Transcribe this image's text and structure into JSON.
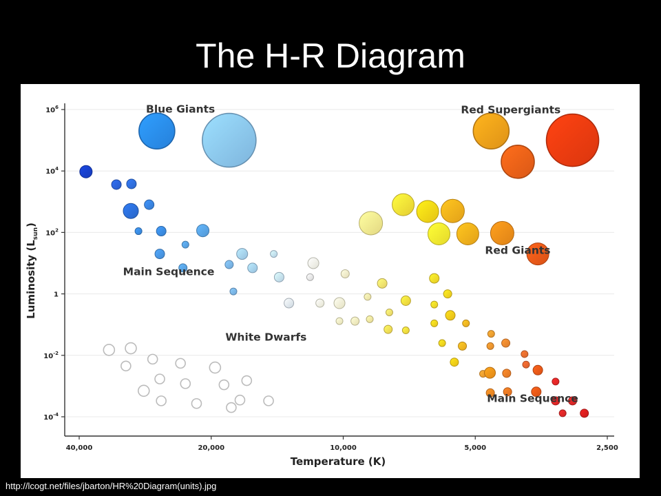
{
  "slide": {
    "title": "The H-R Diagram",
    "source_url": "http://lcogt.net/files/jbarton/HR%20Diagram(units).jpg"
  },
  "chart_data": {
    "type": "scatter",
    "xlabel": "Temperature (K)",
    "ylabel": "Luminosity (L",
    "ylabel_subscript": "sun",
    "ylabel_close": ")",
    "x_scale": "log",
    "x_reversed": true,
    "y_scale": "log",
    "xlim": [
      40000,
      2500
    ],
    "ylim": [
      0.0001,
      1000000
    ],
    "x_ticks": [
      {
        "value": 40000,
        "label": "40,000"
      },
      {
        "value": 20000,
        "label": "20,000"
      },
      {
        "value": 10000,
        "label": "10,000"
      },
      {
        "value": 5000,
        "label": "5,000"
      },
      {
        "value": 2500,
        "label": "2,500"
      }
    ],
    "y_ticks": [
      {
        "value": 1000000,
        "base": "10",
        "exp": "6"
      },
      {
        "value": 10000,
        "base": "10",
        "exp": "4"
      },
      {
        "value": 100,
        "base": "10",
        "exp": "2"
      },
      {
        "value": 1,
        "base": "1",
        "exp": ""
      },
      {
        "value": 0.01,
        "base": "10",
        "exp": "-2"
      },
      {
        "value": 0.0001,
        "base": "10",
        "exp": "-4"
      }
    ],
    "region_labels": [
      {
        "name": "blue-giants",
        "text": "Blue Giants",
        "x": 23500,
        "y": 800000
      },
      {
        "name": "red-supergiants",
        "text": "Red Supergiants",
        "x": 4150,
        "y": 750000
      },
      {
        "name": "red-giants",
        "text": "Red Giants",
        "x": 4000,
        "y": 20
      },
      {
        "name": "main-sequence-upper",
        "text": "Main Sequence",
        "x": 25000,
        "y": 4
      },
      {
        "name": "white-dwarfs",
        "text": "White Dwarfs",
        "x": 15000,
        "y": 0.03
      },
      {
        "name": "main-sequence-lower",
        "text": "Main Sequence",
        "x": 3700,
        "y": 0.0003
      }
    ],
    "series": [
      {
        "name": "Blue Giants",
        "points": [
          {
            "x": 26600,
            "y": 200000,
            "r": 26,
            "color": "#2a8ef2"
          },
          {
            "x": 18200,
            "y": 100000,
            "r": 39,
            "color": "#8cc8f4"
          }
        ]
      },
      {
        "name": "Red Supergiants",
        "points": [
          {
            "x": 4600,
            "y": 200000,
            "r": 26,
            "color": "#f7a21a"
          },
          {
            "x": 3000,
            "y": 100000,
            "r": 38,
            "color": "#f23c10"
          },
          {
            "x": 4000,
            "y": 20000,
            "r": 24,
            "color": "#f26218"
          }
        ]
      },
      {
        "name": "Red Giants",
        "points": [
          {
            "x": 8650,
            "y": 200,
            "r": 17,
            "color": "#fbef90"
          },
          {
            "x": 7300,
            "y": 800,
            "r": 16,
            "color": "#fde338"
          },
          {
            "x": 6420,
            "y": 480,
            "r": 16,
            "color": "#fdd816"
          },
          {
            "x": 5630,
            "y": 500,
            "r": 17,
            "color": "#fbb21c"
          },
          {
            "x": 6050,
            "y": 90,
            "r": 16,
            "color": "#fdf030"
          },
          {
            "x": 5200,
            "y": 90,
            "r": 16,
            "color": "#fbb21c"
          },
          {
            "x": 4340,
            "y": 95,
            "r": 17,
            "color": "#f7901a"
          },
          {
            "x": 3600,
            "y": 20,
            "r": 16,
            "color": "#f05a18"
          }
        ]
      },
      {
        "name": "Main Sequence (upper)",
        "points": [
          {
            "x": 38600,
            "y": 9500,
            "r": 9,
            "color": "#1840cc"
          },
          {
            "x": 32900,
            "y": 3600,
            "r": 7,
            "color": "#2c64dc"
          },
          {
            "x": 30400,
            "y": 3800,
            "r": 7,
            "color": "#3070e0"
          },
          {
            "x": 30500,
            "y": 500,
            "r": 11,
            "color": "#2c70dc"
          },
          {
            "x": 27700,
            "y": 800,
            "r": 7,
            "color": "#3a86e4"
          },
          {
            "x": 29300,
            "y": 110,
            "r": 5,
            "color": "#3c8ee6"
          },
          {
            "x": 26000,
            "y": 110,
            "r": 7,
            "color": "#3c8ee6"
          },
          {
            "x": 20900,
            "y": 115,
            "r": 9,
            "color": "#5aa6ea"
          },
          {
            "x": 22900,
            "y": 40,
            "r": 5,
            "color": "#5aa6ea"
          },
          {
            "x": 26200,
            "y": 20,
            "r": 7,
            "color": "#4a98e8"
          },
          {
            "x": 23200,
            "y": 7,
            "r": 6,
            "color": "#5aa6ea"
          },
          {
            "x": 18200,
            "y": 9,
            "r": 6,
            "color": "#7cb8ee"
          },
          {
            "x": 17000,
            "y": 20,
            "r": 8,
            "color": "#a8d4f6"
          },
          {
            "x": 16100,
            "y": 7,
            "r": 7,
            "color": "#a8d4f6"
          },
          {
            "x": 14400,
            "y": 20,
            "r": 5,
            "color": "#c6e4fa"
          },
          {
            "x": 17800,
            "y": 1.2,
            "r": 5,
            "color": "#7cb8ee"
          },
          {
            "x": 14000,
            "y": 3.5,
            "r": 7,
            "color": "#c8e4f8"
          },
          {
            "x": 13300,
            "y": 0.5,
            "r": 7,
            "color": "#e2eef8"
          },
          {
            "x": 11900,
            "y": 3.5,
            "r": 5,
            "color": "#eeeeee"
          },
          {
            "x": 11700,
            "y": 10,
            "r": 8,
            "color": "#fbfbee"
          },
          {
            "x": 11300,
            "y": 0.5,
            "r": 6,
            "color": "#fcfbe6"
          },
          {
            "x": 9900,
            "y": 4.5,
            "r": 6,
            "color": "#fdf6cc"
          },
          {
            "x": 10200,
            "y": 0.5,
            "r": 8,
            "color": "#fdfad8"
          },
          {
            "x": 10200,
            "y": 0.13,
            "r": 5,
            "color": "#fdf8c8"
          },
          {
            "x": 9400,
            "y": 0.13,
            "r": 6,
            "color": "#fdf6c2"
          },
          {
            "x": 8800,
            "y": 0.8,
            "r": 5,
            "color": "#fdf2b0"
          },
          {
            "x": 8700,
            "y": 0.15,
            "r": 5,
            "color": "#fdf0a4"
          },
          {
            "x": 8150,
            "y": 2.2,
            "r": 7,
            "color": "#fde670"
          },
          {
            "x": 7850,
            "y": 0.25,
            "r": 5,
            "color": "#fde670"
          },
          {
            "x": 7900,
            "y": 0.07,
            "r": 6,
            "color": "#fde258"
          },
          {
            "x": 7200,
            "y": 0.6,
            "r": 7,
            "color": "#fde040"
          },
          {
            "x": 7200,
            "y": 0.065,
            "r": 5,
            "color": "#fde040"
          },
          {
            "x": 6200,
            "y": 3.2,
            "r": 7,
            "color": "#fdde2a"
          },
          {
            "x": 6200,
            "y": 0.45,
            "r": 5,
            "color": "#fdde2a"
          },
          {
            "x": 5780,
            "y": 1.0,
            "r": 6,
            "color": "#fdd820"
          },
          {
            "x": 5700,
            "y": 0.2,
            "r": 7,
            "color": "#fccc1a"
          },
          {
            "x": 6200,
            "y": 0.11,
            "r": 5,
            "color": "#fdd820"
          },
          {
            "x": 5250,
            "y": 0.11,
            "r": 5,
            "color": "#fcb822"
          },
          {
            "x": 5950,
            "y": 0.025,
            "r": 5,
            "color": "#fdd820"
          },
          {
            "x": 5350,
            "y": 0.02,
            "r": 6,
            "color": "#fcb822"
          },
          {
            "x": 5580,
            "y": 0.006,
            "r": 6,
            "color": "#fcd018"
          },
          {
            "x": 4600,
            "y": 0.05,
            "r": 5,
            "color": "#f9a232"
          },
          {
            "x": 4620,
            "y": 0.02,
            "r": 5,
            "color": "#f99830"
          },
          {
            "x": 4260,
            "y": 0.025,
            "r": 6,
            "color": "#f48a30"
          },
          {
            "x": 3860,
            "y": 0.011,
            "r": 5,
            "color": "#f07030"
          },
          {
            "x": 4800,
            "y": 0.0025,
            "r": 5,
            "color": "#f9a232"
          },
          {
            "x": 4630,
            "y": 0.0027,
            "r": 8,
            "color": "#f8961a"
          },
          {
            "x": 4240,
            "y": 0.0026,
            "r": 6,
            "color": "#f48028"
          },
          {
            "x": 3830,
            "y": 0.005,
            "r": 5,
            "color": "#f06830"
          },
          {
            "x": 3600,
            "y": 0.0033,
            "r": 7,
            "color": "#f05a18"
          },
          {
            "x": 4620,
            "y": 0.0006,
            "r": 6,
            "color": "#f78a24"
          },
          {
            "x": 4220,
            "y": 0.00065,
            "r": 6,
            "color": "#f47a24"
          },
          {
            "x": 3630,
            "y": 0.00065,
            "r": 7,
            "color": "#f05a18"
          },
          {
            "x": 3280,
            "y": 0.0014,
            "r": 5,
            "color": "#ea2828"
          },
          {
            "x": 3280,
            "y": 0.00033,
            "r": 6,
            "color": "#ea2828"
          },
          {
            "x": 3000,
            "y": 0.00033,
            "r": 6,
            "color": "#e02828"
          },
          {
            "x": 3160,
            "y": 0.00013,
            "r": 5,
            "color": "#e02828"
          },
          {
            "x": 2820,
            "y": 0.00013,
            "r": 6,
            "color": "#dc1e1e"
          }
        ]
      },
      {
        "name": "White Dwarfs",
        "points": [
          {
            "x": 34200,
            "y": 0.015,
            "r": 8,
            "color": "#ffffff"
          },
          {
            "x": 30500,
            "y": 0.017,
            "r": 8,
            "color": "#ffffff"
          },
          {
            "x": 31300,
            "y": 0.0045,
            "r": 7,
            "color": "#ffffff"
          },
          {
            "x": 27200,
            "y": 0.0075,
            "r": 7,
            "color": "#ffffff"
          },
          {
            "x": 23500,
            "y": 0.0055,
            "r": 7,
            "color": "#ffffff"
          },
          {
            "x": 19600,
            "y": 0.004,
            "r": 8,
            "color": "#ffffff"
          },
          {
            "x": 26200,
            "y": 0.0017,
            "r": 7,
            "color": "#ffffff"
          },
          {
            "x": 22900,
            "y": 0.0012,
            "r": 7,
            "color": "#ffffff"
          },
          {
            "x": 18700,
            "y": 0.0011,
            "r": 7,
            "color": "#ffffff"
          },
          {
            "x": 16600,
            "y": 0.0015,
            "r": 7,
            "color": "#ffffff"
          },
          {
            "x": 28500,
            "y": 0.0007,
            "r": 8,
            "color": "#ffffff"
          },
          {
            "x": 26000,
            "y": 0.00033,
            "r": 7,
            "color": "#ffffff"
          },
          {
            "x": 21600,
            "y": 0.00027,
            "r": 7,
            "color": "#ffffff"
          },
          {
            "x": 18000,
            "y": 0.0002,
            "r": 7,
            "color": "#ffffff"
          },
          {
            "x": 17200,
            "y": 0.00035,
            "r": 7,
            "color": "#ffffff"
          },
          {
            "x": 14800,
            "y": 0.00033,
            "r": 7,
            "color": "#ffffff"
          }
        ]
      }
    ]
  }
}
